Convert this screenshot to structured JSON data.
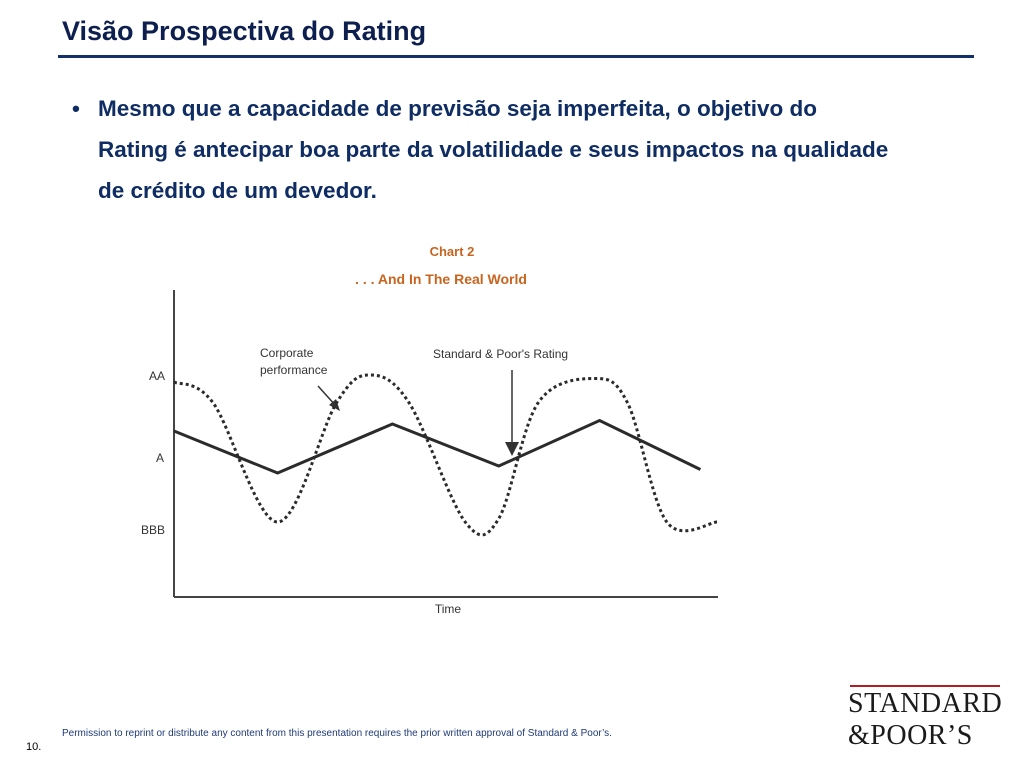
{
  "slide": {
    "title": "Visão Prospectiva do Rating",
    "bullet_marker": "•",
    "bullet_text": "Mesmo que a capacidade de previsão seja imperfeita, o objetivo do Rating é antecipar boa parte da volatilidade e seus impactos na qualidade de crédito de um devedor."
  },
  "chart": {
    "label": "Chart 2",
    "title": ". . . And In The Real World",
    "y_labels": [
      "AA",
      "A",
      "BBB"
    ],
    "x_label": "Time",
    "annotation_corporate": [
      "Corporate",
      "performance"
    ],
    "annotation_rating": "Standard & Poor's Rating",
    "colors": {
      "accent": "#c8641e",
      "axis": "#444444",
      "line": "#2b2b2b"
    }
  },
  "chart_data": {
    "type": "line",
    "title": ". . . And In The Real World",
    "subtitle": "Chart 2",
    "xlabel": "Time",
    "ylabel": "",
    "y_categories": [
      "BBB",
      "A",
      "AA"
    ],
    "series": [
      {
        "name": "Standard & Poor's Rating",
        "style": "solid",
        "x": [
          0,
          1.85,
          3.9,
          5.8,
          7.6,
          9.4
        ],
        "y": [
          1.3,
          0.7,
          1.4,
          0.8,
          1.45,
          0.75
        ]
      },
      {
        "name": "Corporate performance",
        "style": "dotted",
        "x": [
          0,
          0.7,
          1.85,
          2.9,
          3.5,
          4.2,
          5.2,
          5.8,
          6.5,
          7.5,
          8.1,
          8.8,
          9.7
        ],
        "y": [
          2.0,
          1.7,
          0.0,
          1.7,
          2.1,
          1.7,
          0.0,
          0.05,
          1.7,
          2.05,
          1.7,
          0.0,
          0.0
        ]
      }
    ],
    "grid": false
  },
  "footer": {
    "permission": "Permission to reprint or distribute any content from this presentation requires the prior written approval of Standard & Poor’s.",
    "page_number": "10."
  },
  "logo": {
    "line1": "STANDARD",
    "line2": "&POOR’S"
  }
}
